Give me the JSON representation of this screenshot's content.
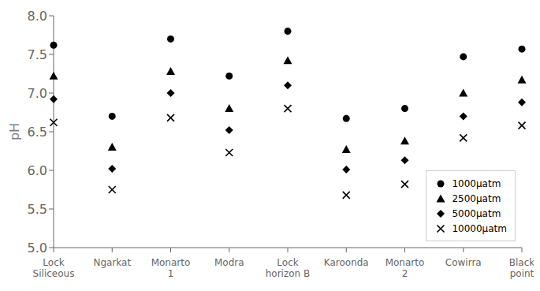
{
  "chart_data": {
    "type": "scatter",
    "categories": [
      "Lock\nSiliceous",
      "Ngarkat",
      "Monarto\n1",
      "Modra",
      "Lock\nhorizon B",
      "Karoonda",
      "Monarto\n2",
      "Cowirra",
      "Black\npoint"
    ],
    "series": [
      {
        "name": "1000μatm",
        "color": "black",
        "marker": "circle",
        "values": [
          7.62,
          6.7,
          7.7,
          7.22,
          7.8,
          6.67,
          6.8,
          7.47,
          7.57
        ]
      },
      {
        "name": "2500μatm",
        "color": "black",
        "marker": "triangle",
        "values": [
          7.22,
          6.3,
          7.28,
          6.8,
          7.42,
          6.27,
          6.38,
          7.0,
          7.17
        ]
      },
      {
        "name": "5000μatm",
        "color": "black",
        "marker": "diamond",
        "values": [
          6.92,
          6.02,
          7.0,
          6.52,
          7.1,
          6.01,
          6.13,
          6.7,
          6.88
        ]
      },
      {
        "name": "10000μatm",
        "color": "black",
        "marker": "x",
        "values": [
          6.62,
          5.75,
          6.68,
          6.23,
          6.8,
          5.68,
          5.82,
          6.42,
          6.58
        ]
      }
    ],
    "ylabel": "pH",
    "ylim": [
      5.0,
      8.0
    ],
    "yticks": [
      {
        "value": 5.0,
        "label": "5.0"
      },
      5.5,
      {
        "value": 6.0,
        "label": "6.0"
      },
      6.5,
      {
        "value": 7.0,
        "label": "7.0"
      },
      7.5,
      {
        "value": 8.0,
        "label": "8.0"
      }
    ],
    "legend": "lower right",
    "grid": false
  }
}
